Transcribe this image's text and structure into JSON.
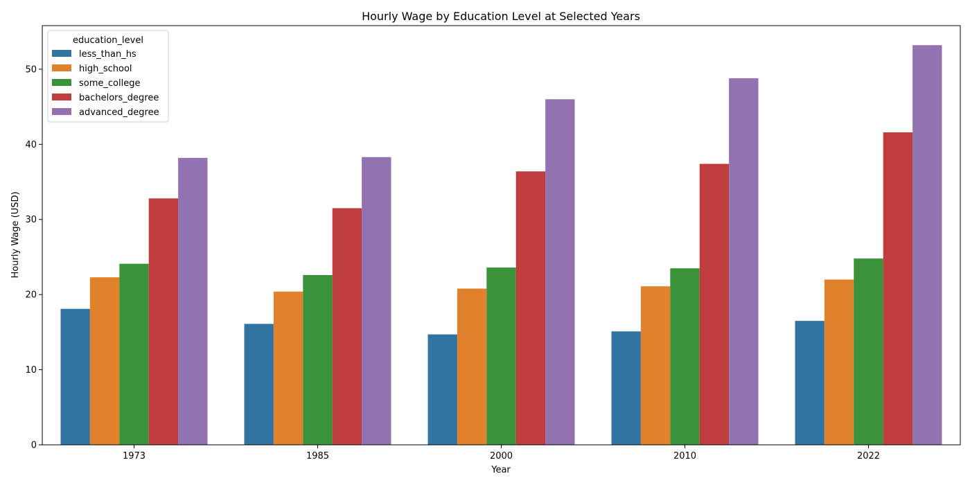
{
  "chart_data": {
    "type": "bar",
    "title": "Hourly Wage by Education Level at Selected Years",
    "xlabel": "Year",
    "ylabel": "Hourly Wage (USD)",
    "categories": [
      "1973",
      "1985",
      "2000",
      "2010",
      "2022"
    ],
    "ylim": [
      0,
      55.8
    ],
    "yticks": [
      0,
      10,
      20,
      30,
      40,
      50
    ],
    "grid": false,
    "legend": {
      "title": "education_level",
      "placement": "top-left"
    },
    "series": [
      {
        "name": "less_than_hs",
        "color": "#3274a1",
        "values": [
          18.1,
          16.1,
          14.7,
          15.1,
          16.5
        ]
      },
      {
        "name": "high_school",
        "color": "#e1812c",
        "values": [
          22.3,
          20.4,
          20.8,
          21.1,
          22.0
        ]
      },
      {
        "name": "some_college",
        "color": "#3a923a",
        "values": [
          24.1,
          22.6,
          23.6,
          23.5,
          24.8
        ]
      },
      {
        "name": "bachelors_degree",
        "color": "#c03d3e",
        "values": [
          32.8,
          31.5,
          36.4,
          37.4,
          41.6
        ]
      },
      {
        "name": "advanced_degree",
        "color": "#9372b2",
        "values": [
          38.2,
          38.3,
          46.0,
          48.8,
          53.2
        ]
      }
    ]
  }
}
